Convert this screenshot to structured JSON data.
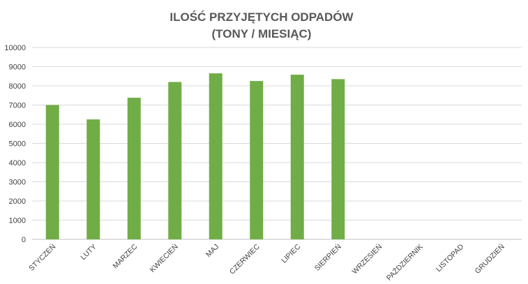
{
  "chart_data": {
    "type": "bar",
    "title_lines": [
      "ILOŚĆ PRZYJĘTYCH ODPADÓW",
      "(TONY / MIESIĄC)"
    ],
    "categories": [
      "STYCZEŃ",
      "LUTY",
      "MARZEC",
      "KWIECIEŃ",
      "MAJ",
      "CZERWIEC",
      "LIPIEC",
      "SIERPIEŃ",
      "WRZESIEŃ",
      "PAŹDZIERNIK",
      "LISTOPAD",
      "GRUDZIEŃ"
    ],
    "values": [
      7000,
      6250,
      7380,
      8200,
      8650,
      8250,
      8580,
      8350,
      null,
      null,
      null,
      null
    ],
    "ylim": [
      0,
      10000
    ],
    "yticks": [
      "0",
      "1000",
      "2000",
      "3000",
      "4000",
      "5000",
      "6000",
      "7000",
      "8000",
      "9000",
      "10000"
    ],
    "grid": true,
    "legend": "none",
    "bar_color": "#70ad47"
  }
}
